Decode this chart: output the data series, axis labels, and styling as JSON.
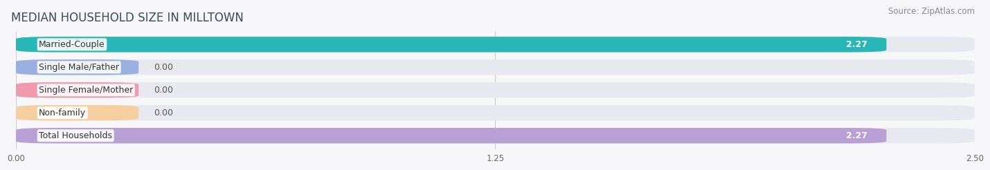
{
  "title": "MEDIAN HOUSEHOLD SIZE IN MILLTOWN",
  "source": "Source: ZipAtlas.com",
  "categories": [
    "Married-Couple",
    "Single Male/Father",
    "Single Female/Mother",
    "Non-family",
    "Total Households"
  ],
  "values": [
    2.27,
    0.0,
    0.0,
    0.0,
    2.27
  ],
  "bar_colors": [
    "#29b6b6",
    "#9ab0e0",
    "#f09aad",
    "#f5cfa0",
    "#b89fd4"
  ],
  "bar_bg_color": "#e8e8f0",
  "xlim": [
    0,
    2.727
  ],
  "xlim_display": [
    0,
    2.5
  ],
  "xticks": [
    0.0,
    1.25,
    2.5
  ],
  "xtick_labels": [
    "0.00",
    "1.25",
    "2.50"
  ],
  "title_fontsize": 12,
  "source_fontsize": 8.5,
  "bar_label_fontsize": 9,
  "cat_label_fontsize": 9,
  "background_color": "#f7f7fa",
  "bar_height": 0.68,
  "value_label_color": "#ffffff",
  "zero_label_color": "#555555",
  "title_color": "#3a4a5a",
  "source_color": "#888888",
  "zero_bar_width": 0.32,
  "rounding_size": 0.1
}
